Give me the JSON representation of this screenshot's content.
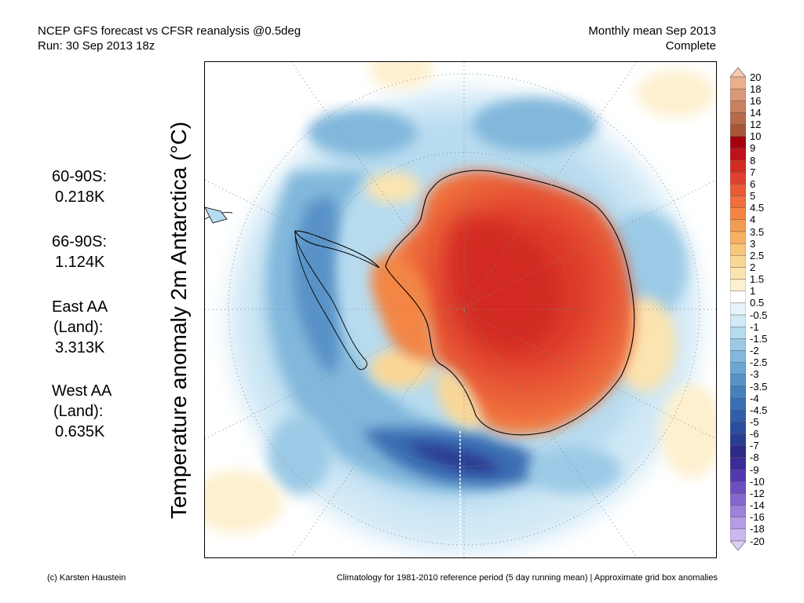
{
  "header": {
    "line1": "NCEP GFS forecast vs CFSR reanalysis @0.5deg",
    "line2": "Run: 30 Sep 2013 18z",
    "right1": "Monthly mean Sep 2013",
    "right2": "Complete"
  },
  "ylabel": "Temperature anomaly 2m Antarctica (°C)",
  "stats": [
    {
      "label": "60-90S:",
      "value": "0.218K"
    },
    {
      "label": "66-90S:",
      "value": "1.124K"
    },
    {
      "label": "East AA",
      "sub": "(Land):",
      "value": "3.313K"
    },
    {
      "label": "West AA",
      "sub": "(Land):",
      "value": "0.635K"
    }
  ],
  "colorbar": {
    "labels": [
      "20",
      "18",
      "16",
      "14",
      "12",
      "10",
      "9",
      "8",
      "7",
      "6",
      "5",
      "4.5",
      "4",
      "3.5",
      "3",
      "2.5",
      "2",
      "1.5",
      "1",
      "0.5",
      "-0.5",
      "-1",
      "-1.5",
      "-2",
      "-2.5",
      "-3",
      "-3.5",
      "-4",
      "-4.5",
      "-5",
      "-6",
      "-7",
      "-8",
      "-9",
      "-10",
      "-12",
      "-14",
      "-16",
      "-18",
      "-20"
    ],
    "colors": [
      "#f6c9b0",
      "#eab08e",
      "#d99878",
      "#c9825f",
      "#b86a4a",
      "#a9553a",
      "#a40010",
      "#c2101a",
      "#d22b22",
      "#e0402d",
      "#ea5a34",
      "#ef6f3d",
      "#f38645",
      "#f49b52",
      "#f7b062",
      "#f8c57a",
      "#fad796",
      "#fbe4b0",
      "#fdf0cf",
      "#ffffff",
      "#e8f4fc",
      "#d2e9f6",
      "#b7dbef",
      "#9ccae6",
      "#82b8dc",
      "#6ca6d2",
      "#5892c7",
      "#4680bd",
      "#3a6eb3",
      "#305eaa",
      "#2b4da0",
      "#2a3b92",
      "#2c2a86",
      "#3a2d9a",
      "#5339b0",
      "#6d4fc2",
      "#8566d0",
      "#9d80dc",
      "#b49ce6",
      "#cbb8ef",
      "#ddd0f5"
    ]
  },
  "footer": {
    "left": "(c) Karsten Haustein",
    "right": "Climatology for 1981-2010 reference period (5 day running mean) | Approximate grid box anomalies"
  }
}
